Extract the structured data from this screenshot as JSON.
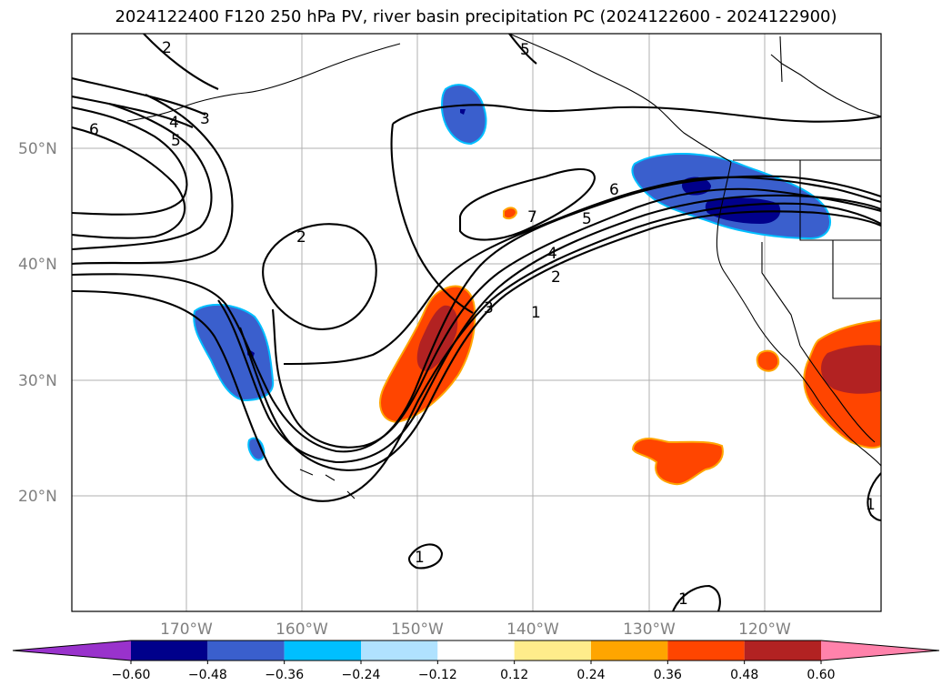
{
  "title": "2024122400 F120 250 hPa PV, river basin precipitation PC (2024122600 - 2024122900)",
  "map": {
    "lat_ticks": [
      "20°N",
      "30°N",
      "40°N",
      "50°N"
    ],
    "lon_ticks": [
      "170°W",
      "160°W",
      "150°W",
      "140°W",
      "130°W",
      "120°W"
    ],
    "pv_contour_labels": [
      "1",
      "1",
      "1",
      "1",
      "2",
      "2",
      "2",
      "3",
      "3",
      "4",
      "4",
      "5",
      "5",
      "5",
      "6",
      "6",
      "7"
    ]
  },
  "colorbar": {
    "tick_labels": [
      "−0.60",
      "−0.48",
      "−0.36",
      "−0.24",
      "−0.12",
      "0.12",
      "0.24",
      "0.36",
      "0.48",
      "0.60"
    ],
    "colors": [
      "#9932cc",
      "#00008b",
      "#3a5fcd",
      "#00bfff",
      "#b0e2ff",
      "#ffffff",
      "#ffec8b",
      "#ffa500",
      "#ff4500",
      "#b22222",
      "#ff82ab"
    ]
  }
}
